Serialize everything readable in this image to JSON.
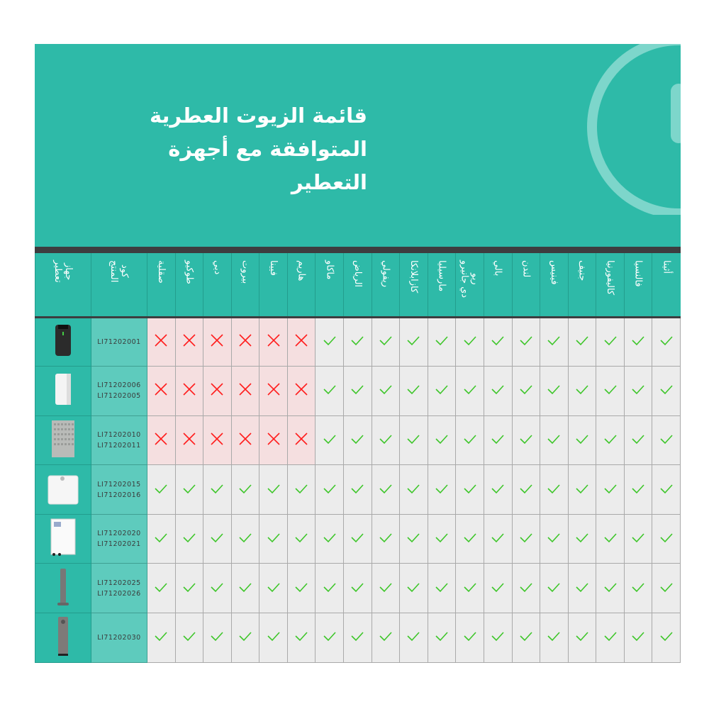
{
  "title_lines": [
    "قائمة الزيوت العطرية",
    "المتوافقة مع أجهزة",
    "التعطير"
  ],
  "columns": {
    "device": "جهاز\nتعطير",
    "code": "كود\nالمنتج"
  },
  "oils": [
    "صقلية",
    "طوكيو",
    "دبي",
    "بيروت",
    "فيينا",
    "هاريم",
    "ماكاو",
    "الرياض",
    "ريفولي",
    "كازابلانكا",
    "مارسيليا",
    "ريو\nدي جانيرو",
    "بالي",
    "لندن",
    "فينيس",
    "جنيف",
    "كاليفورنيا",
    "فالنسيا",
    "أثينا"
  ],
  "rows": [
    {
      "device": "black-cylinder-diffuser",
      "codes": "LI71202001",
      "compatible": [
        false,
        false,
        false,
        false,
        false,
        false,
        true,
        true,
        true,
        true,
        true,
        true,
        true,
        true,
        true,
        true,
        true,
        true,
        true
      ]
    },
    {
      "device": "white-wall-diffuser",
      "codes": "LI71202006\nLI71202005",
      "compatible": [
        false,
        false,
        false,
        false,
        false,
        false,
        true,
        true,
        true,
        true,
        true,
        true,
        true,
        true,
        true,
        true,
        true,
        true,
        true
      ]
    },
    {
      "device": "grey-panel-diffuser",
      "codes": "LI71202010\nLI71202011",
      "compatible": [
        false,
        false,
        false,
        false,
        false,
        false,
        true,
        true,
        true,
        true,
        true,
        true,
        true,
        true,
        true,
        true,
        true,
        true,
        true
      ]
    },
    {
      "device": "white-box-diffuser",
      "codes": "LI71202015\nLI71202016",
      "compatible": [
        true,
        true,
        true,
        true,
        true,
        true,
        true,
        true,
        true,
        true,
        true,
        true,
        true,
        true,
        true,
        true,
        true,
        true,
        true
      ]
    },
    {
      "device": "white-cabinet-diffuser",
      "codes": "LI71202020\nLI71202021",
      "compatible": [
        true,
        true,
        true,
        true,
        true,
        true,
        true,
        true,
        true,
        true,
        true,
        true,
        true,
        true,
        true,
        true,
        true,
        true,
        true
      ]
    },
    {
      "device": "grey-tower-diffuser",
      "codes": "LI71202025\nLI71202026",
      "compatible": [
        true,
        true,
        true,
        true,
        true,
        true,
        true,
        true,
        true,
        true,
        true,
        true,
        true,
        true,
        true,
        true,
        true,
        true,
        true
      ]
    },
    {
      "device": "grey-pillar-diffuser",
      "codes": "LI71202030",
      "compatible": [
        true,
        true,
        true,
        true,
        true,
        true,
        true,
        true,
        true,
        true,
        true,
        true,
        true,
        true,
        true,
        true,
        true,
        true,
        true
      ]
    }
  ],
  "colors": {
    "teal": "#2ebaa8",
    "check": "#3ec62a",
    "cross": "#ff1e1e",
    "incompatible_bg": "#f5dfe0"
  }
}
